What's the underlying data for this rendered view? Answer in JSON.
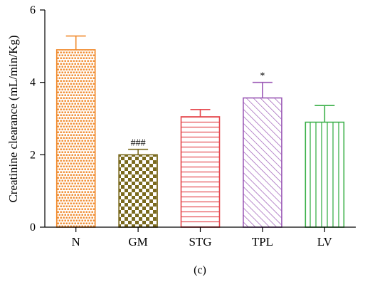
{
  "chart_data": {
    "type": "bar",
    "categories": [
      "N",
      "GM",
      "STG",
      "TPL",
      "LV"
    ],
    "values": [
      4.9,
      2.0,
      3.05,
      3.57,
      2.9
    ],
    "errors": [
      0.38,
      0.15,
      0.2,
      0.43,
      0.46
    ],
    "significance": [
      "",
      "###",
      "",
      "*",
      ""
    ],
    "ylabel": "Creatinine clearance (mL/min/Kg)",
    "xlabel": "",
    "ylim": [
      0,
      6
    ],
    "yticks": [
      0,
      2,
      4,
      6
    ],
    "grid": false,
    "legend": "none",
    "colors": [
      "#f08a2c",
      "#7a6a1e",
      "#e5484d",
      "#9b59b6",
      "#3cb04a"
    ],
    "patterns": [
      "dotted-brick",
      "checker",
      "horizontal-lines",
      "diagonal-lines",
      "vertical-lines"
    ]
  },
  "caption": "(c)"
}
